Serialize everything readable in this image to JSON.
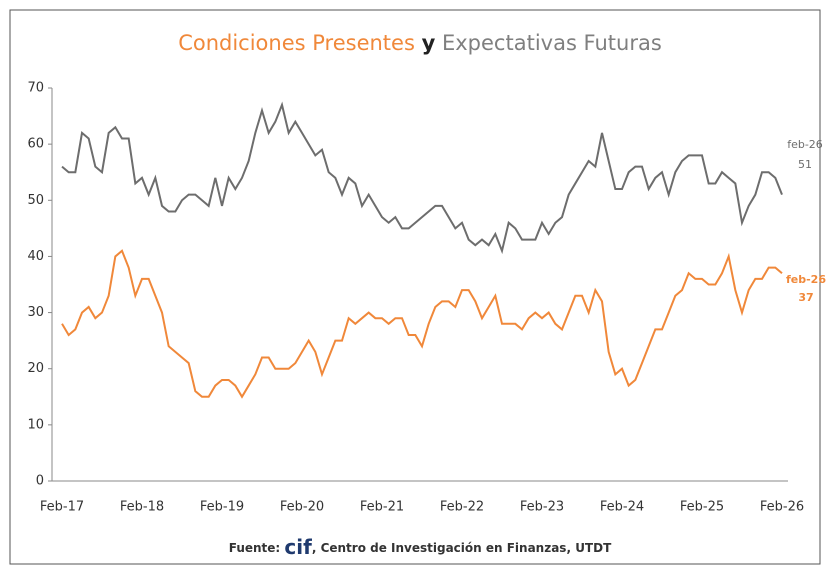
{
  "chart_data": {
    "type": "line",
    "conjunction": "y",
    "categories": [
      "Feb-17",
      null,
      null,
      null,
      null,
      null,
      null,
      null,
      null,
      null,
      null,
      null,
      "Feb-18",
      null,
      null,
      null,
      null,
      null,
      null,
      null,
      null,
      null,
      null,
      null,
      "Feb-19",
      null,
      null,
      null,
      null,
      null,
      null,
      null,
      null,
      null,
      null,
      null,
      "Feb-20",
      null,
      null,
      null,
      null,
      null,
      null,
      null,
      null,
      null,
      null,
      null,
      "Feb-21",
      null,
      null,
      null,
      null,
      null,
      null,
      null,
      null,
      null,
      null,
      null,
      "Feb-22",
      null,
      null,
      null,
      null,
      null,
      null,
      null,
      null,
      null,
      null,
      null,
      "Feb-23",
      null,
      null,
      null,
      null,
      null,
      null,
      null,
      null,
      null,
      null,
      null,
      "Feb-24",
      null,
      null,
      null,
      null,
      null,
      null,
      null,
      null,
      null,
      null,
      null,
      "Feb-25",
      null,
      null,
      null,
      null,
      null,
      null,
      null,
      null,
      null,
      null,
      null,
      "Feb-26"
    ],
    "series": [
      {
        "name": "Condiciones Presentes",
        "color": "#f0883a",
        "values": [
          28,
          26,
          27,
          30,
          31,
          29,
          30,
          33,
          40,
          41,
          38,
          33,
          36,
          36,
          33,
          30,
          24,
          23,
          22,
          21,
          16,
          15,
          15,
          17,
          18,
          18,
          17,
          15,
          17,
          19,
          22,
          22,
          20,
          20,
          20,
          21,
          23,
          25,
          23,
          19,
          22,
          25,
          25,
          29,
          28,
          29,
          30,
          29,
          29,
          28,
          29,
          29,
          26,
          26,
          24,
          28,
          31,
          32,
          32,
          31,
          34,
          34,
          32,
          29,
          31,
          33,
          28,
          28,
          28,
          27,
          29,
          30,
          29,
          30,
          28,
          27,
          30,
          33,
          33,
          30,
          34,
          32,
          23,
          19,
          20,
          17,
          18,
          21,
          24,
          27,
          27,
          30,
          33,
          34,
          37,
          36,
          36,
          35,
          35,
          37,
          40,
          34,
          30,
          34,
          36,
          36,
          38,
          38,
          37
        ]
      },
      {
        "name": "Expectativas Futuras",
        "color": "#6d6d6d",
        "values": [
          56,
          55,
          55,
          62,
          61,
          56,
          55,
          62,
          63,
          61,
          61,
          53,
          54,
          51,
          54,
          49,
          48,
          48,
          50,
          51,
          51,
          50,
          49,
          54,
          49,
          54,
          52,
          54,
          57,
          62,
          66,
          62,
          64,
          67,
          62,
          64,
          62,
          60,
          58,
          59,
          55,
          54,
          51,
          54,
          53,
          49,
          51,
          49,
          47,
          46,
          47,
          45,
          45,
          46,
          47,
          48,
          49,
          49,
          47,
          45,
          46,
          43,
          42,
          43,
          42,
          44,
          41,
          46,
          45,
          43,
          43,
          43,
          46,
          44,
          46,
          47,
          51,
          53,
          55,
          57,
          56,
          62,
          57,
          52,
          52,
          55,
          56,
          56,
          52,
          54,
          55,
          51,
          55,
          57,
          58,
          58,
          58,
          53,
          53,
          55,
          54,
          53,
          46,
          49,
          51,
          55,
          55,
          54,
          51
        ]
      }
    ],
    "annotations": [
      {
        "date": "feb-26",
        "value": 51,
        "series": 1
      },
      {
        "date": "feb-26",
        "value": 37,
        "series": 0
      }
    ],
    "ylim": [
      0,
      70
    ],
    "yticks": [
      0,
      10,
      20,
      30,
      40,
      50,
      60,
      70
    ],
    "grid": false,
    "source": {
      "prefix": "Fuente:",
      "logo": "cif",
      "rest": ", Centro de Investigación en Finanzas, UTDT"
    }
  }
}
